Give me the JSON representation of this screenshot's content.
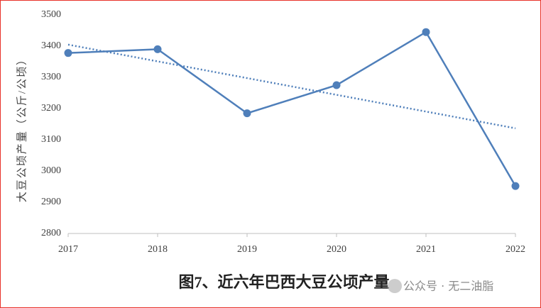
{
  "chart_data": {
    "type": "line",
    "caption": "图7、近六年巴西大豆公顷产量",
    "y_label": "大豆公顷产量（公斤/公顷）",
    "watermark": "公众号 · 无二油脂",
    "categories": [
      "2017",
      "2018",
      "2019",
      "2020",
      "2021",
      "2022"
    ],
    "color": "#4f7fba",
    "values": [
      3378,
      3390,
      3185,
      3275,
      3445,
      2952
    ],
    "trendline": "linear",
    "ylim": [
      2800,
      3500
    ],
    "yticks": [
      2800,
      2900,
      3000,
      3100,
      3200,
      3300,
      3400,
      3500
    ]
  }
}
